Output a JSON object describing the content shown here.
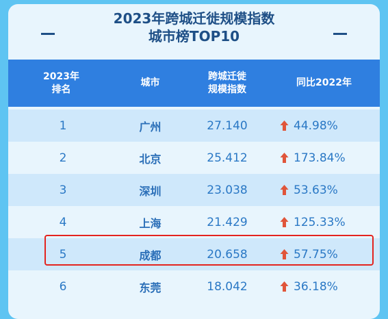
{
  "title": {
    "line1": "2023年跨城迁徙规模指数",
    "line2": "城市榜TOP10"
  },
  "colors": {
    "background": "#5ec4f2",
    "header": "#2f7fe0",
    "title": "#1e4f86",
    "cell_text": "#2a78c5",
    "arrow": "#e0553a",
    "highlight": "#e3231e"
  },
  "chart_data": {
    "type": "table",
    "title": "2023年跨城迁徙规模指数 城市榜TOP10",
    "columns": [
      "2023年 排名",
      "城市",
      "跨城迁徙 规模指数",
      "同比2022年"
    ],
    "header": {
      "rank": [
        "2023年",
        "排名"
      ],
      "city": "城市",
      "index": [
        "跨城迁徙",
        "规模指数"
      ],
      "yoy": "同比2022年"
    },
    "rows": [
      {
        "rank": "1",
        "city": "广州",
        "index": "27.140",
        "yoy": "44.98%",
        "trend": "up"
      },
      {
        "rank": "2",
        "city": "北京",
        "index": "25.412",
        "yoy": "173.84%",
        "trend": "up"
      },
      {
        "rank": "3",
        "city": "深圳",
        "index": "23.038",
        "yoy": "53.63%",
        "trend": "up"
      },
      {
        "rank": "4",
        "city": "上海",
        "index": "21.429",
        "yoy": "125.33%",
        "trend": "up"
      },
      {
        "rank": "5",
        "city": "成都",
        "index": "20.658",
        "yoy": "57.75%",
        "trend": "up",
        "highlighted": true
      },
      {
        "rank": "6",
        "city": "东莞",
        "index": "18.042",
        "yoy": "36.18%",
        "trend": "up"
      }
    ]
  }
}
